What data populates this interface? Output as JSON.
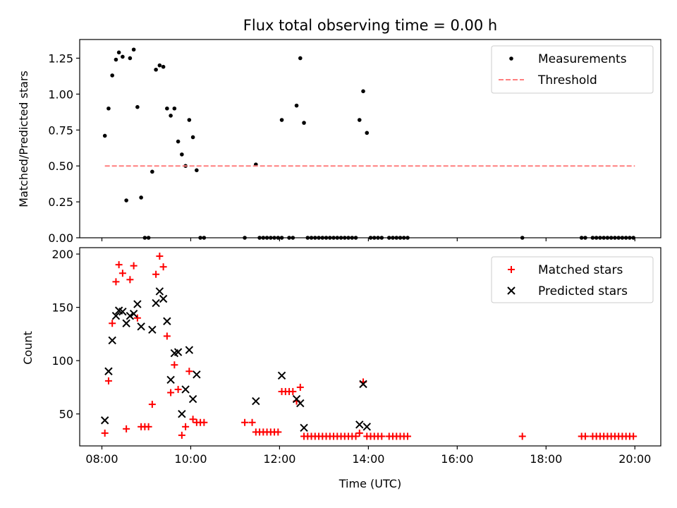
{
  "chart_data": [
    {
      "type": "scatter",
      "title": "Flux total observing time = 0.00 h",
      "xlabel": "",
      "ylabel": "Matched/Predicted stars",
      "xlim": [
        "07:30",
        "20:35"
      ],
      "ylim": [
        0,
        1.38
      ],
      "x_ticks": [
        "08:00",
        "10:00",
        "12:00",
        "14:00",
        "16:00",
        "18:00",
        "20:00"
      ],
      "y_ticks": [
        "0.00",
        "0.25",
        "0.50",
        "0.75",
        "1.00",
        "1.25"
      ],
      "y_tick_values": [
        0,
        0.25,
        0.5,
        0.75,
        1.0,
        1.25
      ],
      "legend_position": "top-right",
      "grid": false,
      "series": [
        {
          "name": "Measurements",
          "marker": "dot",
          "color": "#000000",
          "points": [
            [
              "08:04",
              0.71
            ],
            [
              "08:09",
              0.9
            ],
            [
              "08:14",
              1.13
            ],
            [
              "08:19",
              1.24
            ],
            [
              "08:23",
              1.29
            ],
            [
              "08:28",
              1.26
            ],
            [
              "08:33",
              0.26
            ],
            [
              "08:38",
              1.25
            ],
            [
              "08:43",
              1.31
            ],
            [
              "08:48",
              0.91
            ],
            [
              "08:53",
              0.28
            ],
            [
              "08:58",
              0.0
            ],
            [
              "09:03",
              0.0
            ],
            [
              "09:08",
              0.46
            ],
            [
              "09:13",
              1.17
            ],
            [
              "09:18",
              1.2
            ],
            [
              "09:23",
              1.19
            ],
            [
              "09:28",
              0.9
            ],
            [
              "09:33",
              0.85
            ],
            [
              "09:38",
              0.9
            ],
            [
              "09:43",
              0.67
            ],
            [
              "09:48",
              0.58
            ],
            [
              "09:53",
              0.5
            ],
            [
              "09:58",
              0.82
            ],
            [
              "10:03",
              0.7
            ],
            [
              "10:08",
              0.47
            ],
            [
              "10:13",
              0.0
            ],
            [
              "10:18",
              0.0
            ],
            [
              "11:13",
              0.0
            ],
            [
              "11:28",
              0.51
            ],
            [
              "11:33",
              0.0
            ],
            [
              "11:38",
              0.0
            ],
            [
              "11:43",
              0.0
            ],
            [
              "11:48",
              0.0
            ],
            [
              "11:53",
              0.0
            ],
            [
              "11:58",
              0.0
            ],
            [
              "12:03",
              0.0
            ],
            [
              "12:03",
              0.82
            ],
            [
              "12:13",
              0.0
            ],
            [
              "12:18",
              0.0
            ],
            [
              "12:23",
              0.92
            ],
            [
              "12:28",
              1.25
            ],
            [
              "12:33",
              0.8
            ],
            [
              "12:38",
              0.0
            ],
            [
              "12:43",
              0.0
            ],
            [
              "12:48",
              0.0
            ],
            [
              "12:53",
              0.0
            ],
            [
              "12:58",
              0.0
            ],
            [
              "13:03",
              0.0
            ],
            [
              "13:08",
              0.0
            ],
            [
              "13:13",
              0.0
            ],
            [
              "13:18",
              0.0
            ],
            [
              "13:23",
              0.0
            ],
            [
              "13:28",
              0.0
            ],
            [
              "13:33",
              0.0
            ],
            [
              "13:38",
              0.0
            ],
            [
              "13:43",
              0.0
            ],
            [
              "13:48",
              0.82
            ],
            [
              "13:53",
              1.02
            ],
            [
              "13:58",
              0.73
            ],
            [
              "14:03",
              0.0
            ],
            [
              "14:08",
              0.0
            ],
            [
              "14:13",
              0.0
            ],
            [
              "14:18",
              0.0
            ],
            [
              "14:28",
              0.0
            ],
            [
              "14:33",
              0.0
            ],
            [
              "14:38",
              0.0
            ],
            [
              "14:43",
              0.0
            ],
            [
              "14:48",
              0.0
            ],
            [
              "14:53",
              0.0
            ],
            [
              "17:28",
              0.0
            ],
            [
              "18:48",
              0.0
            ],
            [
              "18:53",
              0.0
            ],
            [
              "19:03",
              0.0
            ],
            [
              "19:08",
              0.0
            ],
            [
              "19:13",
              0.0
            ],
            [
              "19:18",
              0.0
            ],
            [
              "19:23",
              0.0
            ],
            [
              "19:28",
              0.0
            ],
            [
              "19:33",
              0.0
            ],
            [
              "19:38",
              0.0
            ],
            [
              "19:43",
              0.0
            ],
            [
              "19:48",
              0.0
            ],
            [
              "19:53",
              0.0
            ],
            [
              "19:58",
              0.0
            ]
          ]
        },
        {
          "name": "Threshold",
          "marker": "dashed-line",
          "color": "#ff7f7f",
          "points": [
            [
              "08:04",
              0.5
            ],
            [
              "20:00",
              0.5
            ]
          ]
        }
      ]
    },
    {
      "type": "scatter",
      "title": "",
      "xlabel": "Time (UTC)",
      "ylabel": "Count",
      "xlim": [
        "07:30",
        "20:35"
      ],
      "ylim": [
        20,
        206
      ],
      "x_ticks": [
        "08:00",
        "10:00",
        "12:00",
        "14:00",
        "16:00",
        "18:00",
        "20:00"
      ],
      "y_ticks": [
        "50",
        "100",
        "150",
        "200"
      ],
      "y_tick_values": [
        50,
        100,
        150,
        200
      ],
      "legend_position": "top-right",
      "grid": false,
      "series": [
        {
          "name": "Matched stars",
          "marker": "plus",
          "color": "#ff0000",
          "points": [
            [
              "08:04",
              32
            ],
            [
              "08:09",
              81
            ],
            [
              "08:14",
              135
            ],
            [
              "08:19",
              174
            ],
            [
              "08:23",
              190
            ],
            [
              "08:28",
              182
            ],
            [
              "08:33",
              36
            ],
            [
              "08:38",
              176
            ],
            [
              "08:43",
              189
            ],
            [
              "08:48",
              140
            ],
            [
              "08:53",
              38
            ],
            [
              "08:58",
              38
            ],
            [
              "09:03",
              38
            ],
            [
              "09:08",
              59
            ],
            [
              "09:13",
              181
            ],
            [
              "09:18",
              198
            ],
            [
              "09:23",
              188
            ],
            [
              "09:28",
              123
            ],
            [
              "09:33",
              70
            ],
            [
              "09:38",
              96
            ],
            [
              "09:43",
              73
            ],
            [
              "09:48",
              30
            ],
            [
              "09:53",
              38
            ],
            [
              "09:58",
              90
            ],
            [
              "10:03",
              45
            ],
            [
              "10:08",
              42
            ],
            [
              "10:13",
              42
            ],
            [
              "10:18",
              42
            ],
            [
              "11:13",
              42
            ],
            [
              "11:23",
              42
            ],
            [
              "11:28",
              33
            ],
            [
              "11:33",
              33
            ],
            [
              "11:38",
              33
            ],
            [
              "11:43",
              33
            ],
            [
              "11:48",
              33
            ],
            [
              "11:53",
              33
            ],
            [
              "11:58",
              33
            ],
            [
              "12:03",
              71
            ],
            [
              "12:08",
              71
            ],
            [
              "12:13",
              71
            ],
            [
              "12:18",
              71
            ],
            [
              "12:23",
              62
            ],
            [
              "12:28",
              75
            ],
            [
              "12:33",
              29
            ],
            [
              "12:38",
              29
            ],
            [
              "12:43",
              29
            ],
            [
              "12:48",
              29
            ],
            [
              "12:53",
              29
            ],
            [
              "12:58",
              29
            ],
            [
              "13:03",
              29
            ],
            [
              "13:08",
              29
            ],
            [
              "13:13",
              29
            ],
            [
              "13:18",
              29
            ],
            [
              "13:23",
              29
            ],
            [
              "13:28",
              29
            ],
            [
              "13:33",
              29
            ],
            [
              "13:38",
              29
            ],
            [
              "13:43",
              29
            ],
            [
              "13:48",
              32
            ],
            [
              "13:53",
              80
            ],
            [
              "13:58",
              29
            ],
            [
              "14:03",
              29
            ],
            [
              "14:08",
              29
            ],
            [
              "14:13",
              29
            ],
            [
              "14:18",
              29
            ],
            [
              "14:28",
              29
            ],
            [
              "14:33",
              29
            ],
            [
              "14:38",
              29
            ],
            [
              "14:43",
              29
            ],
            [
              "14:48",
              29
            ],
            [
              "14:53",
              29
            ],
            [
              "17:28",
              29
            ],
            [
              "18:48",
              29
            ],
            [
              "18:53",
              29
            ],
            [
              "19:03",
              29
            ],
            [
              "19:08",
              29
            ],
            [
              "19:13",
              29
            ],
            [
              "19:18",
              29
            ],
            [
              "19:23",
              29
            ],
            [
              "19:28",
              29
            ],
            [
              "19:33",
              29
            ],
            [
              "19:38",
              29
            ],
            [
              "19:43",
              29
            ],
            [
              "19:48",
              29
            ],
            [
              "19:53",
              29
            ],
            [
              "19:58",
              29
            ]
          ]
        },
        {
          "name": "Predicted stars",
          "marker": "x",
          "color": "#000000",
          "points": [
            [
              "08:04",
              44
            ],
            [
              "08:09",
              90
            ],
            [
              "08:14",
              119
            ],
            [
              "08:19",
              142
            ],
            [
              "08:23",
              147
            ],
            [
              "08:28",
              146
            ],
            [
              "08:33",
              135
            ],
            [
              "08:38",
              142
            ],
            [
              "08:43",
              144
            ],
            [
              "08:48",
              153
            ],
            [
              "08:53",
              132
            ],
            [
              "09:08",
              129
            ],
            [
              "09:13",
              154
            ],
            [
              "09:18",
              165
            ],
            [
              "09:23",
              158
            ],
            [
              "09:28",
              137
            ],
            [
              "09:33",
              82
            ],
            [
              "09:38",
              107
            ],
            [
              "09:43",
              108
            ],
            [
              "09:48",
              50
            ],
            [
              "09:53",
              73
            ],
            [
              "09:58",
              110
            ],
            [
              "10:03",
              64
            ],
            [
              "10:08",
              87
            ],
            [
              "11:28",
              62
            ],
            [
              "12:03",
              86
            ],
            [
              "12:23",
              64
            ],
            [
              "12:28",
              60
            ],
            [
              "12:33",
              37
            ],
            [
              "13:48",
              40
            ],
            [
              "13:53",
              78
            ],
            [
              "13:58",
              38
            ]
          ]
        }
      ]
    }
  ]
}
